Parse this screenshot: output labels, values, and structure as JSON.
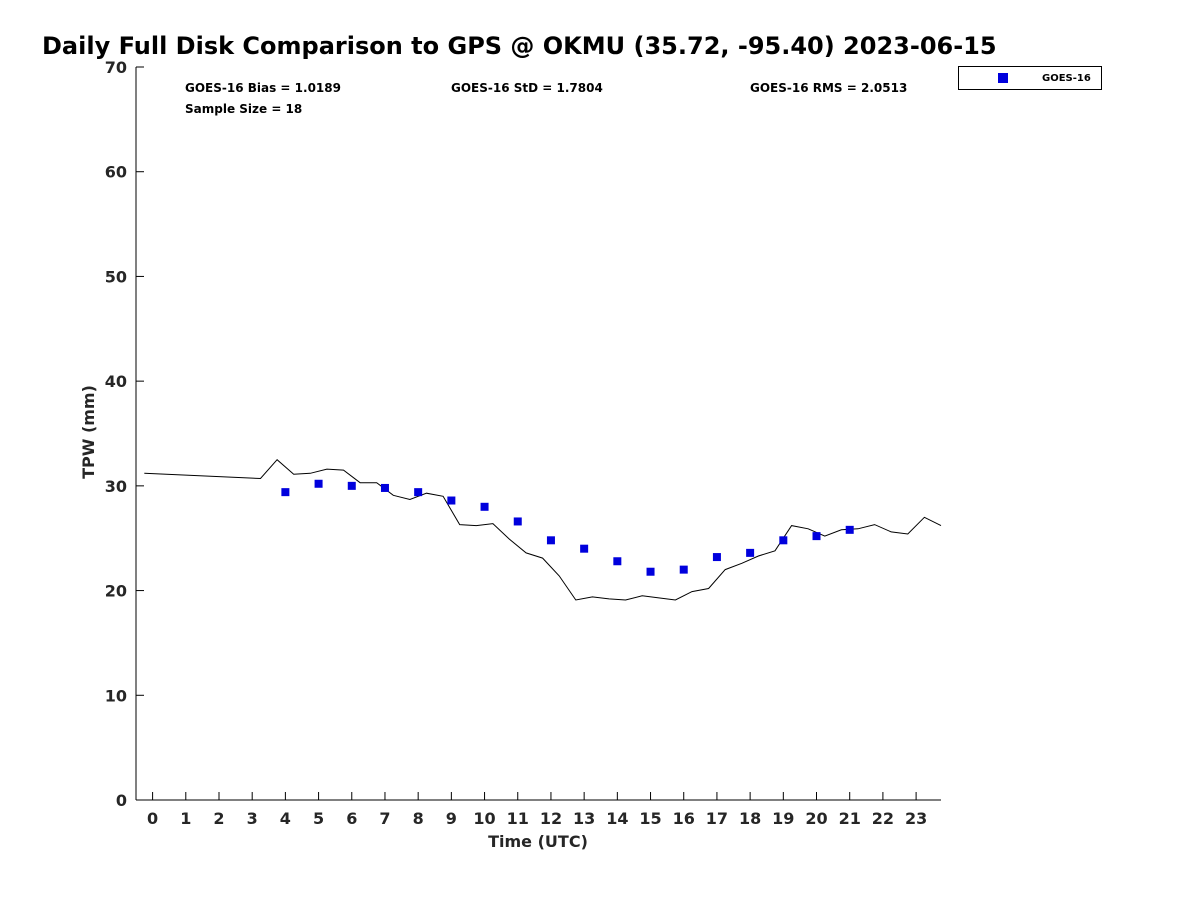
{
  "chart_data": {
    "type": "scatter",
    "title": "Daily Full Disk Comparison to GPS @ OKMU (35.72, -95.40) 2023-06-15",
    "xlabel": "Time (UTC)",
    "ylabel": "TPW (mm)",
    "xlim": [
      -0.5,
      23.75
    ],
    "ylim": [
      0,
      70
    ],
    "x_ticks": [
      0,
      1,
      2,
      3,
      4,
      5,
      6,
      7,
      8,
      9,
      10,
      11,
      12,
      13,
      14,
      15,
      16,
      17,
      18,
      19,
      20,
      21,
      22,
      23
    ],
    "y_ticks": [
      0,
      10,
      20,
      30,
      40,
      50,
      60,
      70
    ],
    "grid": false,
    "legend": {
      "position": "top-right-outside",
      "entries": [
        "GOES-16"
      ]
    },
    "stats": {
      "bias": "GOES-16 Bias = 1.0189",
      "std": "GOES-16 StD = 1.7804",
      "rms": "GOES-16 RMS = 2.0513",
      "sample": "Sample Size = 18"
    },
    "series": [
      {
        "name": "GOES-16",
        "kind": "scatter",
        "color": "#0000dd",
        "marker": "square",
        "points": [
          [
            4.0,
            29.4
          ],
          [
            5.0,
            30.2
          ],
          [
            6.0,
            30.0
          ],
          [
            7.0,
            29.8
          ],
          [
            8.0,
            29.4
          ],
          [
            9.0,
            28.6
          ],
          [
            10.0,
            28.0
          ],
          [
            11.0,
            26.6
          ],
          [
            12.0,
            24.8
          ],
          [
            13.0,
            24.0
          ],
          [
            14.0,
            22.8
          ],
          [
            15.0,
            21.8
          ],
          [
            16.0,
            22.0
          ],
          [
            17.0,
            23.2
          ],
          [
            18.0,
            23.6
          ],
          [
            19.0,
            24.8
          ],
          [
            20.0,
            25.2
          ],
          [
            21.0,
            25.8
          ]
        ]
      },
      {
        "kind": "line",
        "color": "#000000",
        "points": [
          [
            -0.25,
            31.2
          ],
          [
            3.25,
            30.7
          ],
          [
            3.75,
            32.5
          ],
          [
            4.25,
            31.1
          ],
          [
            4.75,
            31.2
          ],
          [
            5.25,
            31.6
          ],
          [
            5.75,
            31.5
          ],
          [
            6.25,
            30.3
          ],
          [
            6.75,
            30.3
          ],
          [
            7.25,
            29.1
          ],
          [
            7.75,
            28.7
          ],
          [
            8.25,
            29.3
          ],
          [
            8.75,
            29.0
          ],
          [
            9.25,
            26.3
          ],
          [
            9.75,
            26.2
          ],
          [
            10.25,
            26.4
          ],
          [
            10.75,
            24.9
          ],
          [
            11.25,
            23.6
          ],
          [
            11.75,
            23.1
          ],
          [
            12.25,
            21.4
          ],
          [
            12.75,
            19.1
          ],
          [
            13.25,
            19.4
          ],
          [
            13.75,
            19.2
          ],
          [
            14.25,
            19.1
          ],
          [
            14.75,
            19.5
          ],
          [
            15.25,
            19.3
          ],
          [
            15.75,
            19.1
          ],
          [
            16.25,
            19.9
          ],
          [
            16.75,
            20.2
          ],
          [
            17.25,
            22.0
          ],
          [
            17.75,
            22.6
          ],
          [
            18.25,
            23.3
          ],
          [
            18.75,
            23.8
          ],
          [
            19.25,
            26.2
          ],
          [
            19.75,
            25.9
          ],
          [
            20.25,
            25.2
          ],
          [
            20.75,
            25.8
          ],
          [
            21.25,
            25.9
          ],
          [
            21.75,
            26.3
          ],
          [
            22.25,
            25.6
          ],
          [
            22.75,
            25.4
          ],
          [
            23.25,
            27.0
          ],
          [
            23.75,
            26.2
          ]
        ]
      }
    ]
  }
}
